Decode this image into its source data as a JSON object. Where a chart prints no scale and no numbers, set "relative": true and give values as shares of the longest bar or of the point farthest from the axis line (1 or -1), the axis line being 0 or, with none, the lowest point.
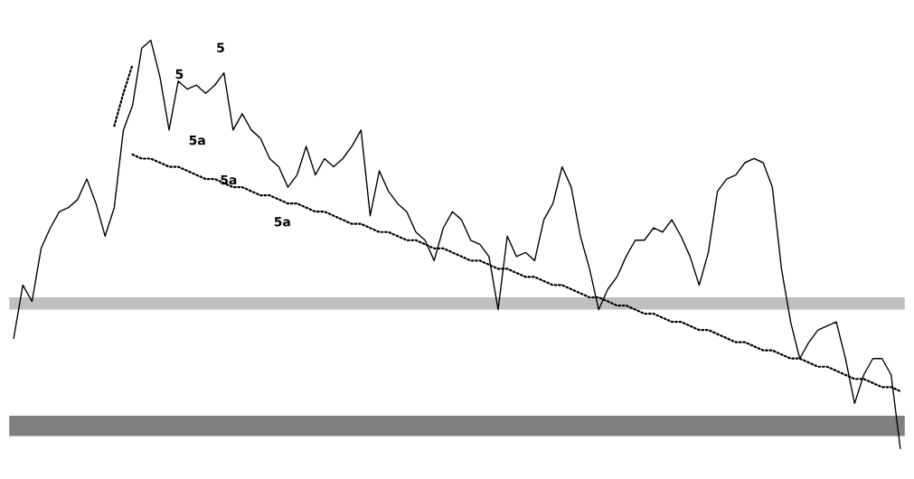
{
  "chart_data": {
    "type": "line",
    "relative": true,
    "categories": [
      null,
      null,
      null,
      null,
      null,
      null,
      null,
      null,
      null,
      null,
      null,
      null,
      null,
      null,
      null,
      null,
      null,
      null,
      null,
      null,
      null,
      null,
      null,
      null,
      null,
      null,
      null,
      null,
      null,
      null,
      null,
      null,
      null,
      null,
      null,
      null,
      null,
      null,
      null,
      null,
      null,
      null,
      null,
      null,
      null,
      null,
      null,
      null,
      null,
      null,
      null,
      null,
      null,
      null,
      null,
      null,
      null,
      null,
      null,
      null,
      null,
      null,
      null,
      null,
      null,
      null,
      null,
      null,
      null,
      null,
      null,
      null,
      null,
      null,
      null,
      null,
      null,
      null,
      null,
      null,
      null,
      null,
      null,
      null,
      null,
      null,
      null,
      null,
      null,
      null,
      null,
      null,
      null,
      null,
      null,
      null,
      null,
      null
    ],
    "series": [
      {
        "color": "#000000",
        "values": [
          0.27,
          0.4,
          0.36,
          0.49,
          0.54,
          0.58,
          0.59,
          0.61,
          0.66,
          0.6,
          0.52,
          0.59,
          0.78,
          0.84,
          0.98,
          1.0,
          0.91,
          0.78,
          0.9,
          0.88,
          0.89,
          0.87,
          0.89,
          0.92,
          0.78,
          0.82,
          0.78,
          0.76,
          0.71,
          0.69,
          0.64,
          0.67,
          0.74,
          0.67,
          0.71,
          0.69,
          0.71,
          0.74,
          0.78,
          0.57,
          0.68,
          0.63,
          0.6,
          0.58,
          0.53,
          0.51,
          0.46,
          0.54,
          0.58,
          0.56,
          0.51,
          0.5,
          0.47,
          0.34,
          0.52,
          0.47,
          0.48,
          0.46,
          0.56,
          0.6,
          0.69,
          0.64,
          0.52,
          0.44,
          0.34,
          0.39,
          0.42,
          0.47,
          0.51,
          0.51,
          0.54,
          0.53,
          0.56,
          0.52,
          0.47,
          0.4,
          0.48,
          0.63,
          0.66,
          0.67,
          0.7,
          0.71,
          0.7,
          0.64,
          0.44,
          0.31,
          0.22,
          0.26,
          0.29,
          0.3,
          0.31,
          0.22,
          0.11,
          0.18,
          0.22,
          0.22,
          0.18,
          0.0
        ]
      },
      {
        "color": "#000000",
        "line_style": "dotted",
        "values": [
          null,
          null,
          null,
          null,
          null,
          null,
          null,
          null,
          null,
          null,
          null,
          null,
          null,
          0.72,
          0.71,
          0.71,
          0.7,
          0.69,
          0.69,
          0.68,
          0.67,
          0.66,
          0.66,
          0.65,
          0.64,
          0.64,
          0.63,
          0.62,
          0.62,
          0.61,
          0.6,
          0.6,
          0.59,
          0.58,
          0.58,
          0.57,
          0.56,
          0.55,
          0.55,
          0.54,
          0.53,
          0.53,
          0.52,
          0.51,
          0.51,
          0.5,
          0.49,
          0.49,
          0.48,
          0.47,
          0.46,
          0.46,
          0.45,
          0.44,
          0.44,
          0.43,
          0.42,
          0.42,
          0.41,
          0.4,
          0.4,
          0.39,
          0.38,
          0.37,
          0.37,
          0.36,
          0.35,
          0.35,
          0.34,
          0.33,
          0.33,
          0.32,
          0.31,
          0.31,
          0.3,
          0.29,
          0.29,
          0.28,
          0.27,
          0.26,
          0.26,
          0.25,
          0.24,
          0.24,
          0.23,
          0.22,
          0.22,
          0.21,
          0.2,
          0.2,
          0.19,
          0.18,
          0.17,
          0.17,
          0.16,
          0.15,
          0.15,
          0.14
        ]
      },
      {
        "color": "#000000",
        "line_style": "dotted",
        "values": [
          null,
          null,
          null,
          null,
          null,
          null,
          null,
          null,
          null,
          null,
          null,
          0.79,
          0.87,
          0.94,
          null,
          null,
          null,
          null,
          null,
          null,
          null,
          null,
          null,
          null,
          null,
          null,
          null,
          null,
          null,
          null,
          null,
          null,
          null,
          null,
          null,
          null,
          null,
          null,
          null,
          null,
          null,
          null,
          null,
          null,
          null,
          null,
          null,
          null,
          null,
          null,
          null,
          null,
          null,
          null,
          null,
          null,
          null,
          null,
          null,
          null,
          null,
          null,
          null,
          null,
          null,
          null,
          null,
          null,
          null,
          null,
          null,
          null,
          null,
          null,
          null,
          null,
          null,
          null,
          null,
          null,
          null,
          null,
          null,
          null,
          null,
          null,
          null,
          null,
          null,
          null,
          null,
          null,
          null,
          null,
          null,
          null,
          null,
          null
        ]
      }
    ],
    "bands": [
      {
        "axis": "y",
        "from": 0.34,
        "to": 0.37,
        "color": "#c0c0c0"
      },
      {
        "axis": "y",
        "from": 0.03,
        "to": 0.08,
        "color": "#808080"
      }
    ],
    "annotations": [
      "5",
      "5",
      "5a",
      "5a",
      "5a"
    ],
    "legend": false,
    "marker": "none"
  }
}
